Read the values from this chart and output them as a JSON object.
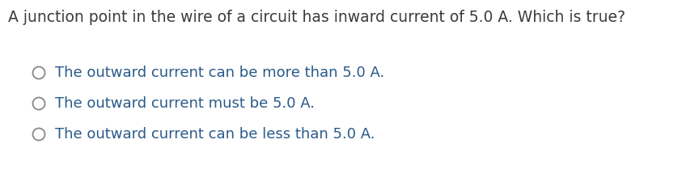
{
  "background_color": "#ffffff",
  "title_text": "A junction point in the wire of a circuit has inward current of 5.0 A. Which is true?",
  "title_color": "#3c3c3c",
  "title_fontsize": 13.5,
  "options": [
    "The outward current can be more than 5.0 A.",
    "The outward current must be 5.0 A.",
    "The outward current can be less than 5.0 A."
  ],
  "option_fontsize": 13.0,
  "option_color": "#2a5a8a",
  "circle_color": "#888888",
  "circle_linewidth": 1.3
}
